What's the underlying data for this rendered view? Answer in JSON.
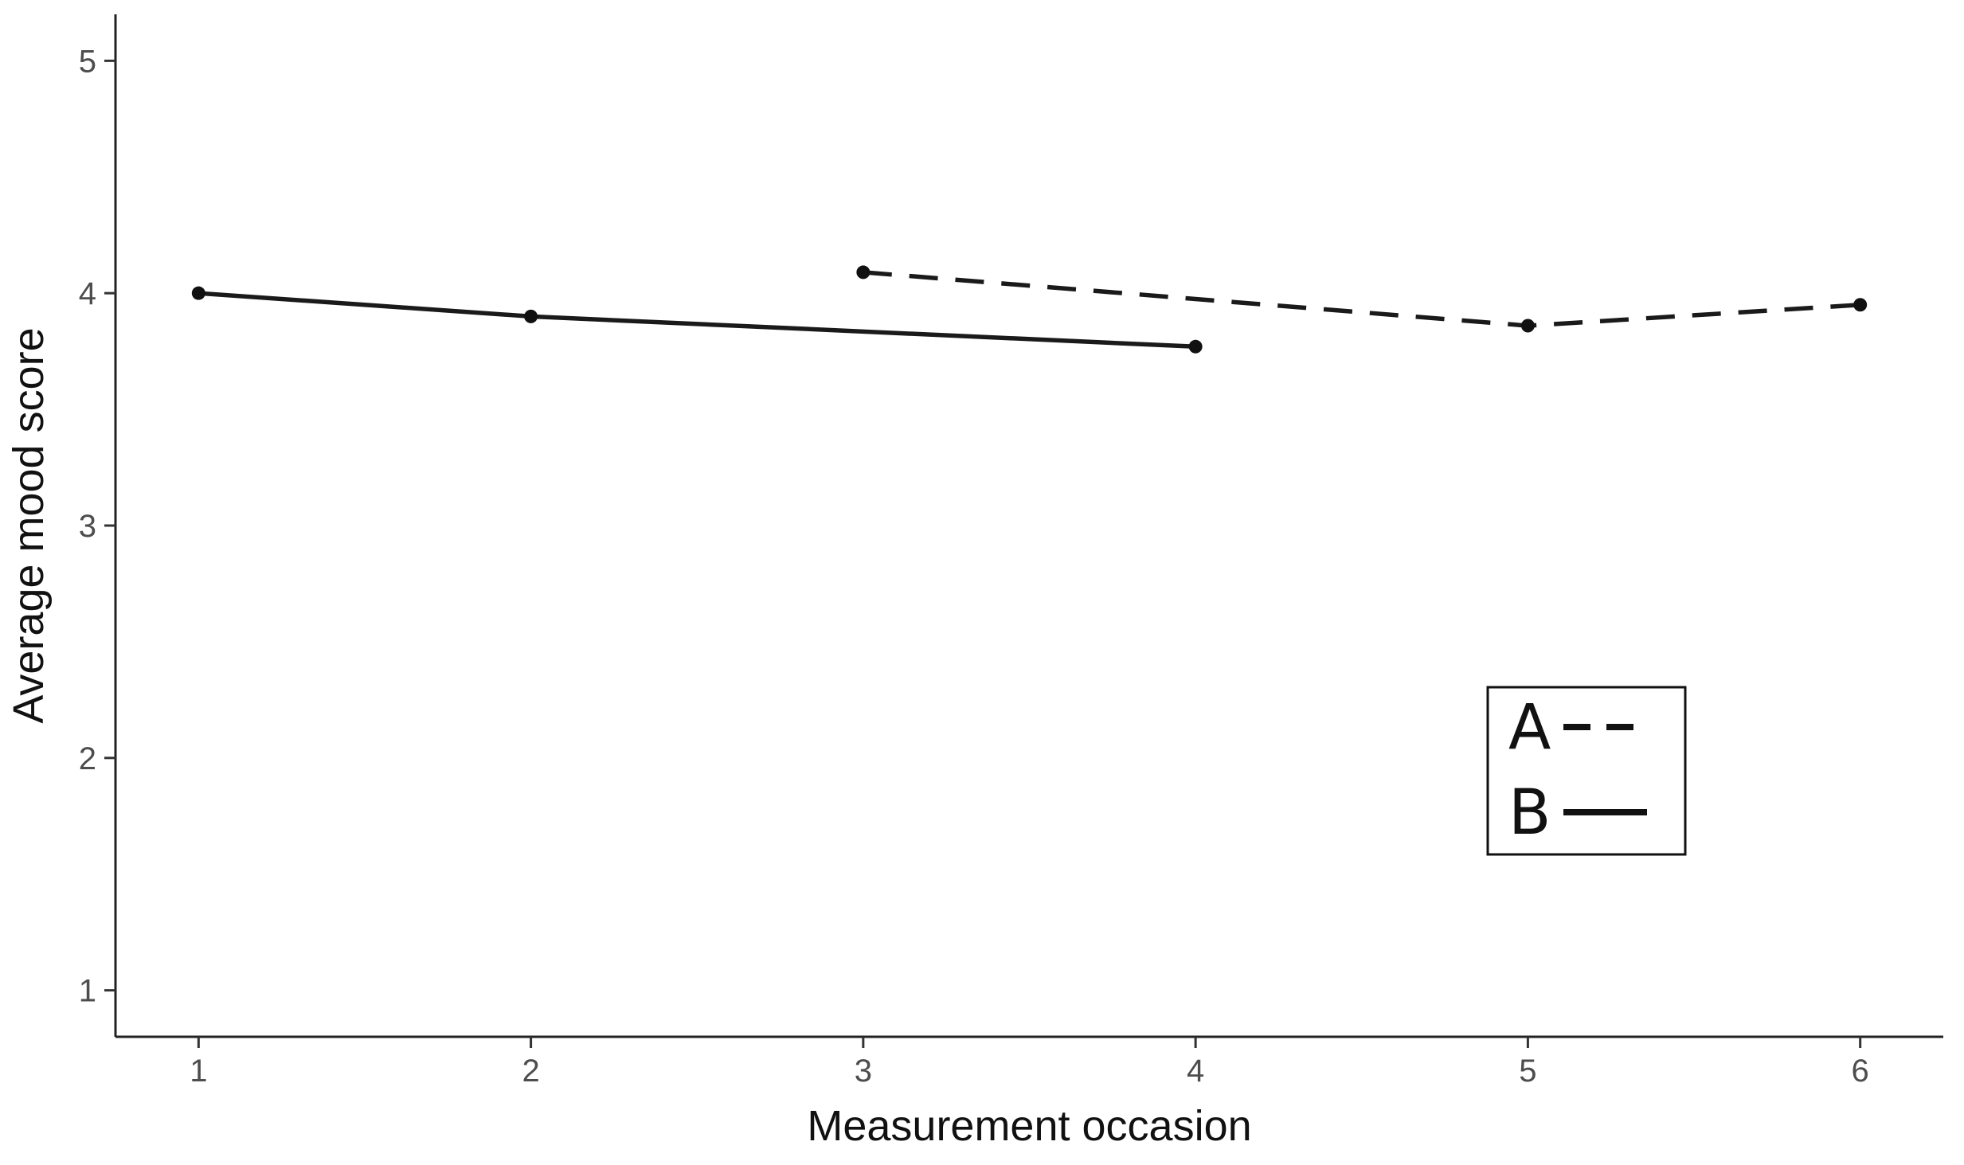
{
  "chart_data": {
    "type": "line",
    "title": "",
    "xlabel": "Measurement occasion",
    "ylabel": "Average mood score",
    "xlim": [
      0.75,
      6.25
    ],
    "ylim": [
      0.8,
      5.2
    ],
    "xticks": [
      1,
      2,
      3,
      4,
      5,
      6
    ],
    "yticks": [
      1,
      2,
      3,
      4,
      5
    ],
    "grid": false,
    "legend_position": "bottom-right",
    "series": [
      {
        "name": "A",
        "line_style": "dashed",
        "color": "#111111",
        "points": [
          {
            "x": 3,
            "y": 4.09
          },
          {
            "x": 5,
            "y": 3.86
          },
          {
            "x": 6,
            "y": 3.95
          }
        ]
      },
      {
        "name": "B",
        "line_style": "solid",
        "color": "#111111",
        "points": [
          {
            "x": 1,
            "y": 4.0
          },
          {
            "x": 2,
            "y": 3.9
          },
          {
            "x": 4,
            "y": 3.77
          }
        ]
      }
    ]
  }
}
